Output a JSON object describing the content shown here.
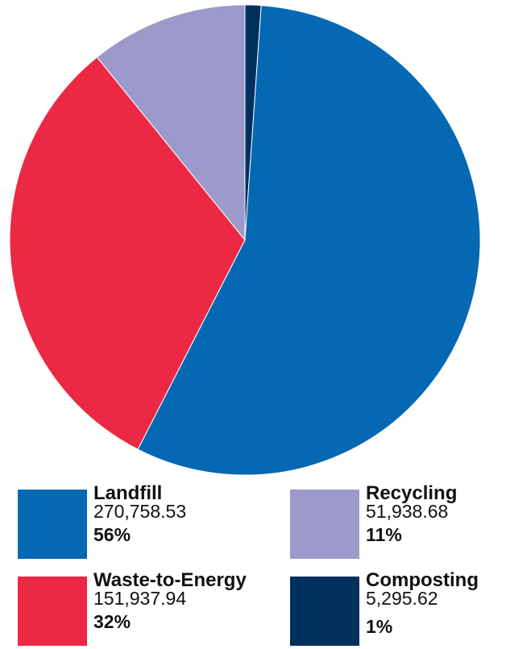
{
  "chart_data": {
    "type": "pie",
    "title": "",
    "slices": [
      {
        "label": "Landfill",
        "value": 270758.53,
        "value_text": "270,758.53",
        "percent_text": "56%",
        "color": "#0568b3"
      },
      {
        "label": "Waste-to-Energy",
        "value": 151937.94,
        "value_text": "151,937.94",
        "percent_text": "32%",
        "color": "#ec2944"
      },
      {
        "label": "Recycling",
        "value": 51938.68,
        "value_text": "51,938.68",
        "percent_text": "11%",
        "color": "#9b9acb"
      },
      {
        "label": "Composting",
        "value": 5295.62,
        "value_text": "5,295.62",
        "percent_text": "1%",
        "color": "#00305e"
      }
    ],
    "start_angle_deg": 0,
    "direction": "clockwise",
    "legend_position": "bottom"
  },
  "legend": {
    "landfill": {
      "name": "Landfill",
      "value": "270,758.53",
      "pct": "56%",
      "color": "#0568b3"
    },
    "waste_to_energy": {
      "name": "Waste-to-Energy",
      "value": "151,937.94",
      "pct": "32%",
      "color": "#ec2944"
    },
    "recycling": {
      "name": "Recycling",
      "value": "51,938.68",
      "pct": "11%",
      "color": "#9b9acb"
    },
    "composting": {
      "name": "Composting",
      "value": "5,295.62",
      "pct": "1%",
      "color": "#00305e"
    }
  }
}
